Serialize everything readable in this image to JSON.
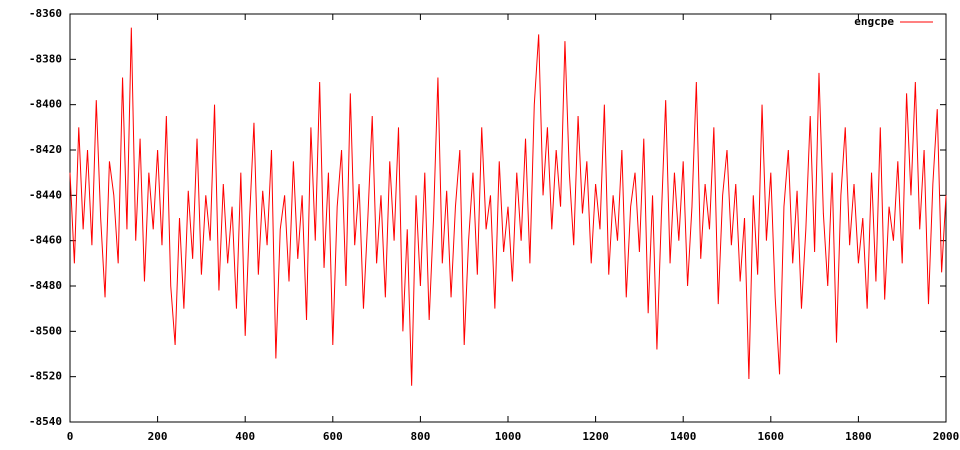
{
  "chart_data": {
    "type": "line",
    "x": [
      0,
      10,
      20,
      30,
      40,
      50,
      60,
      70,
      80,
      90,
      100,
      110,
      120,
      130,
      140,
      150,
      160,
      170,
      180,
      190,
      200,
      210,
      220,
      230,
      240,
      250,
      260,
      270,
      280,
      290,
      300,
      310,
      320,
      330,
      340,
      350,
      360,
      370,
      380,
      390,
      400,
      410,
      420,
      430,
      440,
      450,
      460,
      470,
      480,
      490,
      500,
      510,
      520,
      530,
      540,
      550,
      560,
      570,
      580,
      590,
      600,
      610,
      620,
      630,
      640,
      650,
      660,
      670,
      680,
      690,
      700,
      710,
      720,
      730,
      740,
      750,
      760,
      770,
      780,
      790,
      800,
      810,
      820,
      830,
      840,
      850,
      860,
      870,
      880,
      890,
      900,
      910,
      920,
      930,
      940,
      950,
      960,
      970,
      980,
      990,
      1000,
      1010,
      1020,
      1030,
      1040,
      1050,
      1060,
      1070,
      1080,
      1090,
      1100,
      1110,
      1120,
      1130,
      1140,
      1150,
      1160,
      1170,
      1180,
      1190,
      1200,
      1210,
      1220,
      1230,
      1240,
      1250,
      1260,
      1270,
      1280,
      1290,
      1300,
      1310,
      1320,
      1330,
      1340,
      1350,
      1360,
      1370,
      1380,
      1390,
      1400,
      1410,
      1420,
      1430,
      1440,
      1450,
      1460,
      1470,
      1480,
      1490,
      1500,
      1510,
      1520,
      1530,
      1540,
      1550,
      1560,
      1570,
      1580,
      1590,
      1600,
      1610,
      1620,
      1630,
      1640,
      1650,
      1660,
      1670,
      1680,
      1690,
      1700,
      1710,
      1720,
      1730,
      1740,
      1750,
      1760,
      1770,
      1780,
      1790,
      1800,
      1810,
      1820,
      1830,
      1840,
      1850,
      1860,
      1870,
      1880,
      1890,
      1900,
      1910,
      1920,
      1930,
      1940,
      1950,
      1960,
      1970,
      1980,
      1990,
      2000
    ],
    "series": [
      {
        "name": "engcpe",
        "color": "#ff0000",
        "values": [
          -8430,
          -8470,
          -8410,
          -8455,
          -8420,
          -8462,
          -8398,
          -8450,
          -8485,
          -8425,
          -8440,
          -8470,
          -8388,
          -8455,
          -8366,
          -8460,
          -8415,
          -8478,
          -8430,
          -8455,
          -8420,
          -8462,
          -8405,
          -8480,
          -8506,
          -8450,
          -8490,
          -8438,
          -8468,
          -8415,
          -8475,
          -8440,
          -8460,
          -8400,
          -8482,
          -8435,
          -8470,
          -8445,
          -8490,
          -8430,
          -8502,
          -8450,
          -8408,
          -8475,
          -8438,
          -8462,
          -8420,
          -8512,
          -8455,
          -8440,
          -8478,
          -8425,
          -8468,
          -8440,
          -8495,
          -8410,
          -8460,
          -8390,
          -8472,
          -8430,
          -8506,
          -8445,
          -8420,
          -8480,
          -8395,
          -8462,
          -8435,
          -8490,
          -8450,
          -8405,
          -8470,
          -8440,
          -8485,
          -8425,
          -8460,
          -8410,
          -8500,
          -8455,
          -8524,
          -8440,
          -8480,
          -8430,
          -8495,
          -8450,
          -8388,
          -8470,
          -8438,
          -8485,
          -8445,
          -8420,
          -8506,
          -8460,
          -8430,
          -8475,
          -8410,
          -8455,
          -8440,
          -8490,
          -8425,
          -8465,
          -8445,
          -8478,
          -8430,
          -8460,
          -8415,
          -8470,
          -8400,
          -8369,
          -8440,
          -8410,
          -8455,
          -8420,
          -8445,
          -8372,
          -8430,
          -8462,
          -8405,
          -8448,
          -8425,
          -8470,
          -8435,
          -8455,
          -8400,
          -8475,
          -8440,
          -8460,
          -8420,
          -8485,
          -8445,
          -8430,
          -8465,
          -8415,
          -8492,
          -8440,
          -8508,
          -8450,
          -8398,
          -8470,
          -8430,
          -8460,
          -8425,
          -8480,
          -8445,
          -8390,
          -8468,
          -8435,
          -8455,
          -8410,
          -8488,
          -8440,
          -8420,
          -8462,
          -8435,
          -8478,
          -8450,
          -8521,
          -8440,
          -8475,
          -8400,
          -8460,
          -8430,
          -8485,
          -8519,
          -8445,
          -8420,
          -8470,
          -8438,
          -8490,
          -8455,
          -8405,
          -8465,
          -8386,
          -8448,
          -8480,
          -8430,
          -8505,
          -8440,
          -8410,
          -8462,
          -8435,
          -8470,
          -8450,
          -8490,
          -8430,
          -8478,
          -8410,
          -8486,
          -8445,
          -8460,
          -8425,
          -8470,
          -8395,
          -8440,
          -8390,
          -8455,
          -8420,
          -8488,
          -8435,
          -8402,
          -8474,
          -8440
        ]
      }
    ],
    "xlim": [
      0,
      2000
    ],
    "xticks": [
      0,
      200,
      400,
      600,
      800,
      1000,
      1200,
      1400,
      1600,
      1800,
      2000
    ],
    "ylim": [
      -8540,
      -8360
    ],
    "yticks": [
      -8540,
      -8520,
      -8500,
      -8480,
      -8460,
      -8440,
      -8420,
      -8400,
      -8380,
      -8360
    ],
    "legend": "top-right"
  }
}
